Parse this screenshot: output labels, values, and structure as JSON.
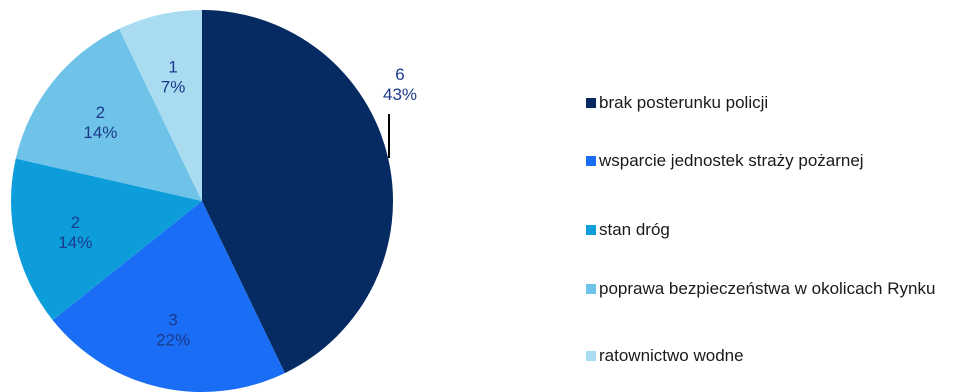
{
  "chart_data": {
    "type": "pie",
    "title": "",
    "slices": [
      {
        "label": "brak posterunku policji",
        "value": 6,
        "percent": "43%",
        "color": "#062b63"
      },
      {
        "label": "wsparcie jednostek straży pożarnej",
        "value": 3,
        "percent": "22%",
        "color": "#1a6ef5"
      },
      {
        "label": "stan dróg",
        "value": 2,
        "percent": "14%",
        "color": "#0d9ddb"
      },
      {
        "label": "poprawa bezpieczeństwa w okolicach Rynku",
        "value": 2,
        "percent": "14%",
        "color": "#6fc3e8"
      },
      {
        "label": "ratownictwo wodne",
        "value": 1,
        "percent": "7%",
        "color": "#a9dcf1"
      }
    ],
    "legend_position": "right",
    "label_color": "#1b3a8c",
    "start_angle_deg": 0,
    "direction": "clockwise"
  }
}
